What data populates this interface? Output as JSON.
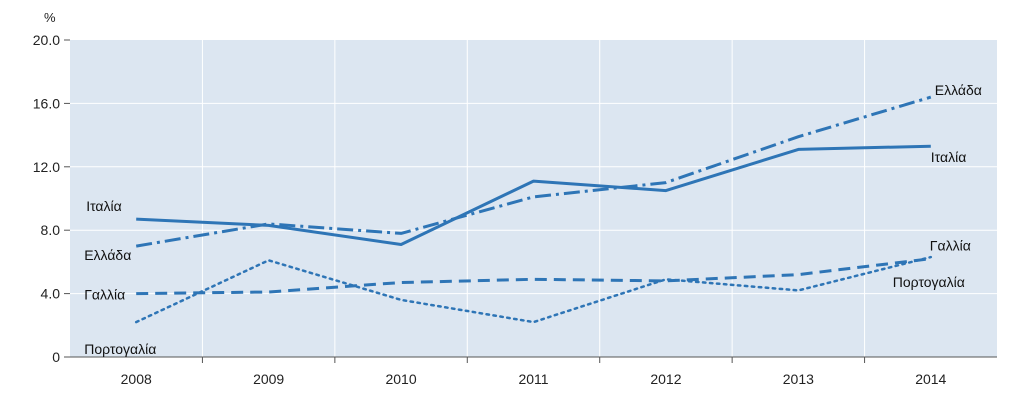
{
  "chart_data": {
    "type": "line",
    "y_unit": "%",
    "ylim": [
      0,
      20
    ],
    "yticks": [
      "0",
      "4.0",
      "8.0",
      "12.0",
      "16.0",
      "20.0"
    ],
    "x": [
      "2008",
      "2009",
      "2010",
      "2011",
      "2012",
      "2013",
      "2014"
    ],
    "grid": true,
    "series": [
      {
        "name": "Ιταλία",
        "values": [
          8.7,
          8.3,
          7.1,
          11.1,
          10.5,
          13.1,
          13.3
        ],
        "style": "solid"
      },
      {
        "name": "Ελλάδα",
        "values": [
          7.0,
          8.4,
          7.8,
          10.1,
          11.0,
          13.9,
          16.4
        ],
        "style": "dashdot"
      },
      {
        "name": "Γαλλία",
        "values": [
          4.0,
          4.1,
          4.7,
          4.9,
          4.8,
          5.2,
          6.2
        ],
        "style": "dashed"
      },
      {
        "name": "Πορτογαλία",
        "values": [
          2.2,
          6.1,
          3.6,
          2.2,
          4.9,
          4.2,
          6.3
        ],
        "style": "dotted"
      }
    ],
    "line_color": "#2e75b6",
    "plot_background": "#dce6f1",
    "grid_color": "#ffffff"
  }
}
